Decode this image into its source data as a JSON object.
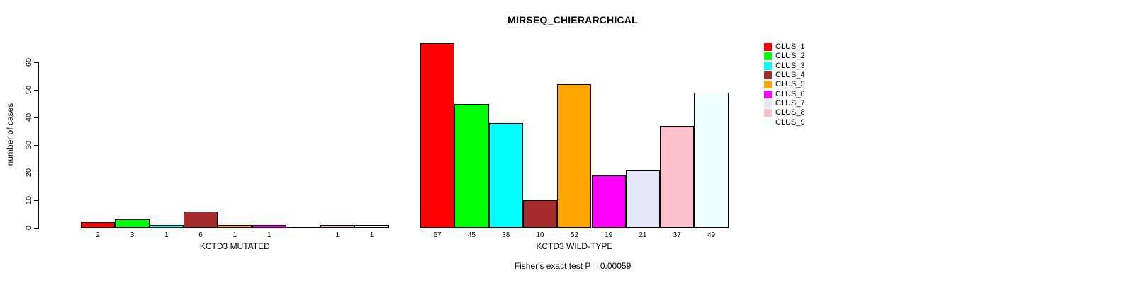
{
  "chart_data": {
    "type": "bar",
    "title": "MIRSEQ_CHIERARCHICAL",
    "ylabel": "number of cases",
    "xlabel": "",
    "ylim": [
      0,
      60
    ],
    "yticks": [
      0,
      10,
      20,
      30,
      40,
      50,
      60
    ],
    "grid": false,
    "legend_position": "top-right",
    "clusters": [
      "CLUS_1",
      "CLUS_2",
      "CLUS_3",
      "CLUS_4",
      "CLUS_5",
      "CLUS_6",
      "CLUS_7",
      "CLUS_8",
      "CLUS_9"
    ],
    "colors": [
      "#FF0000",
      "#00FF00",
      "#00FFFF",
      "#A52A2A",
      "#FFA500",
      "#FF00FF",
      "#E6E6FA",
      "#FFC0CB",
      "#F0FFFF"
    ],
    "groups": [
      {
        "label": "KCTD3 MUTATED",
        "values": [
          2,
          3,
          1,
          6,
          1,
          1,
          0,
          1,
          1
        ]
      },
      {
        "label": "KCTD3 WILD-TYPE",
        "values": [
          67,
          45,
          38,
          10,
          52,
          19,
          21,
          37,
          49
        ]
      }
    ],
    "annotation": "Fisher's exact test P = 0.00059"
  }
}
